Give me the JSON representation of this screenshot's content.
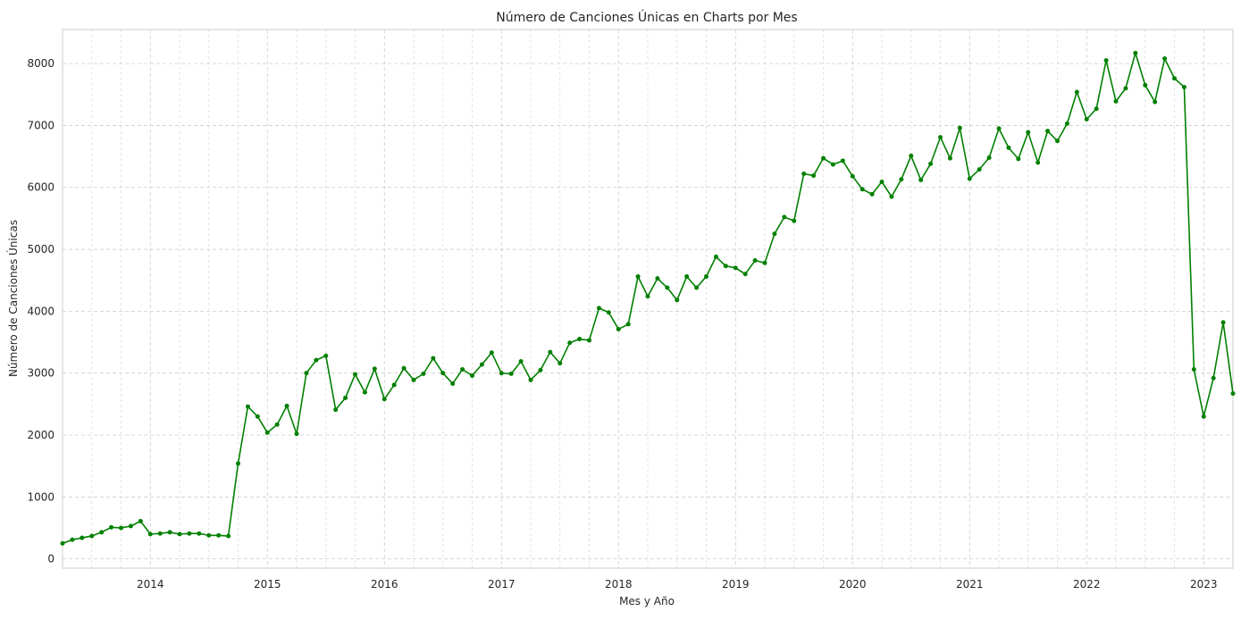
{
  "chart_data": {
    "type": "line",
    "title": "Número de Canciones Únicas en Charts por Mes",
    "xlabel": "Mes y Año",
    "ylabel": "Número de Canciones Únicas",
    "x_tick_labels": [
      "2014",
      "2015",
      "2016",
      "2017",
      "2018",
      "2019",
      "2020",
      "2021",
      "2022",
      "2023"
    ],
    "y_tick_labels": [
      "0",
      "1000",
      "2000",
      "3000",
      "4000",
      "5000",
      "6000",
      "7000",
      "8000"
    ],
    "ylim": [
      -150,
      8550
    ],
    "xlim": [
      "2013-04",
      "2023-04"
    ],
    "grid": true,
    "line_color": "#008000",
    "series": [
      {
        "x": [
          "2013-04",
          "2013-05",
          "2013-06",
          "2013-07",
          "2013-08",
          "2013-09",
          "2013-10",
          "2013-11",
          "2013-12",
          "2014-01",
          "2014-02",
          "2014-03",
          "2014-04",
          "2014-05",
          "2014-06",
          "2014-07",
          "2014-08",
          "2014-09",
          "2014-10",
          "2014-11",
          "2014-12",
          "2015-01",
          "2015-02",
          "2015-03",
          "2015-04",
          "2015-05",
          "2015-06",
          "2015-07",
          "2015-08",
          "2015-09",
          "2015-10",
          "2015-11",
          "2015-12",
          "2016-01",
          "2016-02",
          "2016-03",
          "2016-04",
          "2016-05",
          "2016-06",
          "2016-07",
          "2016-08",
          "2016-09",
          "2016-10",
          "2016-11",
          "2016-12",
          "2017-01",
          "2017-02",
          "2017-03",
          "2017-04",
          "2017-05",
          "2017-06",
          "2017-07",
          "2017-08",
          "2017-09",
          "2017-10",
          "2017-11",
          "2017-12",
          "2018-01",
          "2018-02",
          "2018-03",
          "2018-04",
          "2018-05",
          "2018-06",
          "2018-07",
          "2018-08",
          "2018-09",
          "2018-10",
          "2018-11",
          "2018-12",
          "2019-01",
          "2019-02",
          "2019-03",
          "2019-04",
          "2019-05",
          "2019-06",
          "2019-07",
          "2019-08",
          "2019-09",
          "2019-10",
          "2019-11",
          "2019-12",
          "2020-01",
          "2020-02",
          "2020-03",
          "2020-04",
          "2020-05",
          "2020-06",
          "2020-07",
          "2020-08",
          "2020-09",
          "2020-10",
          "2020-11",
          "2020-12",
          "2021-01",
          "2021-02",
          "2021-03",
          "2021-04",
          "2021-05",
          "2021-06",
          "2021-07",
          "2021-08",
          "2021-09",
          "2021-10",
          "2021-11",
          "2021-12",
          "2022-01",
          "2022-02",
          "2022-03",
          "2022-04",
          "2022-05",
          "2022-06",
          "2022-07",
          "2022-08",
          "2022-09",
          "2022-10",
          "2022-11",
          "2022-12",
          "2023-01",
          "2023-02",
          "2023-03",
          "2023-04"
        ],
        "values": [
          250,
          310,
          340,
          370,
          430,
          510,
          500,
          530,
          610,
          400,
          410,
          430,
          400,
          410,
          410,
          380,
          380,
          370,
          1540,
          2460,
          2300,
          2040,
          2170,
          2470,
          2020,
          3000,
          3210,
          3280,
          2410,
          2600,
          2980,
          2690,
          3070,
          2580,
          2810,
          3080,
          2890,
          2990,
          3240,
          3000,
          2830,
          3060,
          2960,
          3140,
          3330,
          3000,
          2990,
          3190,
          2890,
          3050,
          3340,
          3160,
          3490,
          3550,
          3530,
          4050,
          3980,
          3710,
          3790,
          4560,
          4240,
          4530,
          4380,
          4180,
          4560,
          4380,
          4560,
          4880,
          4730,
          4700,
          4600,
          4820,
          4780,
          5250,
          5520,
          5460,
          6220,
          6190,
          6470,
          6370,
          6430,
          6180,
          5970,
          5890,
          6090,
          5850,
          6130,
          6510,
          6120,
          6380,
          6810,
          6470,
          6960,
          6140,
          6290,
          6480,
          6950,
          6640,
          6460,
          6890,
          6400,
          6910,
          6750,
          7030,
          7540,
          7100,
          7270,
          8050,
          7390,
          7600,
          8170,
          7650,
          7380,
          8080,
          7760,
          7620,
          3060,
          2300,
          2920,
          3820,
          2670
        ]
      }
    ]
  }
}
